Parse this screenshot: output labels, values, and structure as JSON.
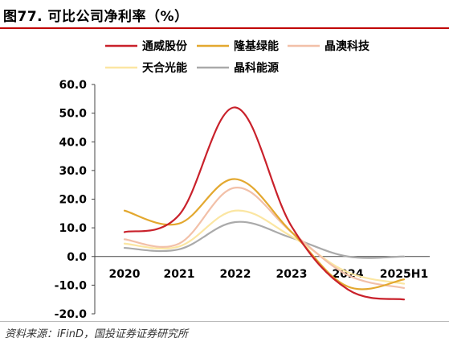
{
  "title": "图77. 可比公司净利率（%）",
  "source": "资料来源：iFinD，国投证券证券研究所",
  "chart_data": {
    "type": "line",
    "categories": [
      "2020",
      "2021",
      "2022",
      "2023",
      "2024",
      "2025H1"
    ],
    "ylim": [
      -20,
      60
    ],
    "yticks": [
      "60.0",
      "50.0",
      "40.0",
      "30.0",
      "20.0",
      "10.0",
      "0.0",
      "-10.0",
      "-20.0"
    ],
    "legend_position": "top",
    "grid": false,
    "series": [
      {
        "name": "通威股份",
        "color": "#c9212b",
        "values": [
          8.5,
          14.5,
          52.0,
          10.5,
          -11.5,
          -15.0
        ]
      },
      {
        "name": "隆基绿能",
        "color": "#e3a82f",
        "values": [
          16.0,
          11.5,
          27.0,
          8.5,
          -10.5,
          -8.0
        ]
      },
      {
        "name": "晶澳科技",
        "color": "#f2c0a8",
        "values": [
          6.0,
          4.5,
          24.0,
          8.5,
          -6.5,
          -11.0
        ]
      },
      {
        "name": "天合光能",
        "color": "#fbe6a2",
        "values": [
          4.5,
          3.5,
          16.0,
          7.0,
          -5.5,
          -9.5
        ]
      },
      {
        "name": "晶科能源",
        "color": "#aaaaaa",
        "values": [
          3.0,
          2.5,
          12.0,
          6.5,
          0.0,
          0.0
        ]
      }
    ]
  }
}
